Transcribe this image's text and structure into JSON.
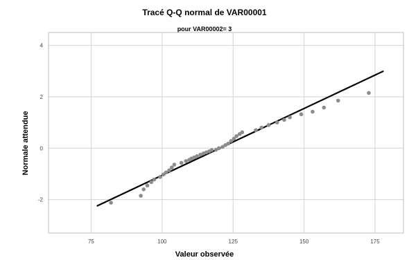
{
  "chart_data": {
    "type": "scatter",
    "title": "Tracé Q-Q normal de VAR00001",
    "subtitle": "pour VAR00002= 3",
    "xlabel": "Valeur observée",
    "ylabel": "Normale attendue",
    "xlim": [
      60,
      185
    ],
    "ylim": [
      -3.3,
      4.5
    ],
    "xticks": [
      75,
      100,
      125,
      150,
      175
    ],
    "yticks": [
      -2,
      0,
      2,
      4
    ],
    "grid": true,
    "series": [
      {
        "points": [
          [
            82,
            -2.12
          ],
          [
            92.5,
            -1.85
          ],
          [
            93.5,
            -1.6
          ],
          [
            94.8,
            -1.45
          ],
          [
            96.2,
            -1.32
          ],
          [
            97.2,
            -1.22
          ],
          [
            99.3,
            -1.12
          ],
          [
            100.5,
            -1.02
          ],
          [
            101.4,
            -0.94
          ],
          [
            102.5,
            -0.86
          ],
          [
            103.4,
            -0.75
          ],
          [
            104.3,
            -0.64
          ],
          [
            106.8,
            -0.57
          ],
          [
            108.4,
            -0.5
          ],
          [
            109.6,
            -0.45
          ],
          [
            110.4,
            -0.4
          ],
          [
            111.3,
            -0.36
          ],
          [
            112.3,
            -0.31
          ],
          [
            113.5,
            -0.25
          ],
          [
            114.6,
            -0.2
          ],
          [
            115.6,
            -0.16
          ],
          [
            116.6,
            -0.12
          ],
          [
            117.5,
            -0.07
          ],
          [
            119,
            -0.06
          ],
          [
            120,
            0.0
          ],
          [
            121.3,
            0.05
          ],
          [
            122.3,
            0.12
          ],
          [
            123.3,
            0.18
          ],
          [
            124.3,
            0.28
          ],
          [
            125.3,
            0.37
          ],
          [
            126.2,
            0.47
          ],
          [
            127.3,
            0.55
          ],
          [
            128.2,
            0.62
          ],
          [
            133,
            0.7
          ],
          [
            135,
            0.8
          ],
          [
            137.5,
            0.9
          ],
          [
            140.5,
            1.0
          ],
          [
            143,
            1.1
          ],
          [
            145,
            1.2
          ],
          [
            149,
            1.32
          ],
          [
            153,
            1.42
          ],
          [
            157,
            1.58
          ],
          [
            162,
            1.85
          ],
          [
            172.8,
            2.15
          ]
        ]
      }
    ],
    "reference_line": [
      [
        77,
        -2.25
      ],
      [
        178,
        3.0
      ]
    ],
    "colors": {
      "points": "#8c8c8c",
      "line": "#000000",
      "grid": "#d2d2d2",
      "frame": "#bdbdbd",
      "ticks": "#444444"
    }
  }
}
